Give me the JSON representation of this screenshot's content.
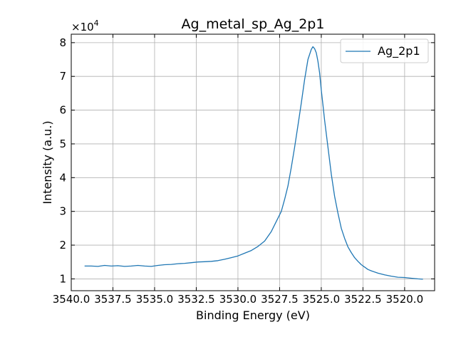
{
  "chart_data": {
    "type": "line",
    "title": "Ag_metal_sp_Ag_2p1",
    "xlabel": "Binding Energy (eV)",
    "ylabel": "Intensity (a.u.)",
    "y_scale_label": "×10",
    "y_scale_exponent": "4",
    "x_reversed": true,
    "xlim": [
      3540.0,
      3518.2
    ],
    "ylim": [
      0.65,
      8.25
    ],
    "x_ticks": [
      3540.0,
      3537.5,
      3535.0,
      3532.5,
      3530.0,
      3527.5,
      3525.0,
      3522.5,
      3520.0
    ],
    "x_tick_labels": [
      "3540.0",
      "3537.5",
      "3535.0",
      "3532.5",
      "3530.0",
      "3527.5",
      "3525.0",
      "3522.5",
      "3520.0"
    ],
    "y_ticks": [
      1,
      2,
      3,
      4,
      5,
      6,
      7,
      8
    ],
    "y_tick_labels": [
      "1",
      "2",
      "3",
      "4",
      "5",
      "6",
      "7",
      "8"
    ],
    "grid": true,
    "legend": "top-right",
    "series": [
      {
        "name": "Ag_2p1",
        "color": "#1f77b4",
        "x": [
          3539.2,
          3538.8,
          3538.4,
          3538.0,
          3537.6,
          3537.2,
          3536.8,
          3536.4,
          3536.0,
          3535.6,
          3535.2,
          3534.8,
          3534.4,
          3534.0,
          3533.6,
          3533.2,
          3532.8,
          3532.4,
          3532.0,
          3531.6,
          3531.2,
          3530.8,
          3530.4,
          3530.0,
          3529.6,
          3529.2,
          3528.8,
          3528.4,
          3528.0,
          3527.6,
          3527.4,
          3527.2,
          3527.0,
          3526.8,
          3526.6,
          3526.4,
          3526.2,
          3526.0,
          3525.8,
          3525.6,
          3525.5,
          3525.4,
          3525.3,
          3525.2,
          3525.1,
          3525.0,
          3524.9,
          3524.8,
          3524.6,
          3524.4,
          3524.2,
          3524.0,
          3523.8,
          3523.6,
          3523.4,
          3523.2,
          3523.0,
          3522.8,
          3522.6,
          3522.4,
          3522.2,
          3522.0,
          3521.6,
          3521.2,
          3520.8,
          3520.4,
          3520.0,
          3519.6,
          3519.2,
          3518.9
        ],
        "values": [
          1.38,
          1.38,
          1.37,
          1.4,
          1.38,
          1.39,
          1.37,
          1.38,
          1.4,
          1.38,
          1.37,
          1.4,
          1.42,
          1.43,
          1.45,
          1.46,
          1.48,
          1.5,
          1.51,
          1.52,
          1.54,
          1.58,
          1.63,
          1.68,
          1.76,
          1.84,
          1.96,
          2.12,
          2.4,
          2.8,
          3.0,
          3.35,
          3.75,
          4.3,
          4.9,
          5.55,
          6.2,
          6.9,
          7.5,
          7.8,
          7.88,
          7.82,
          7.7,
          7.45,
          7.1,
          6.6,
          6.15,
          5.7,
          4.9,
          4.1,
          3.45,
          2.95,
          2.5,
          2.2,
          1.95,
          1.78,
          1.63,
          1.52,
          1.42,
          1.35,
          1.28,
          1.24,
          1.17,
          1.12,
          1.08,
          1.05,
          1.04,
          1.02,
          1.0,
          0.99
        ]
      }
    ]
  }
}
